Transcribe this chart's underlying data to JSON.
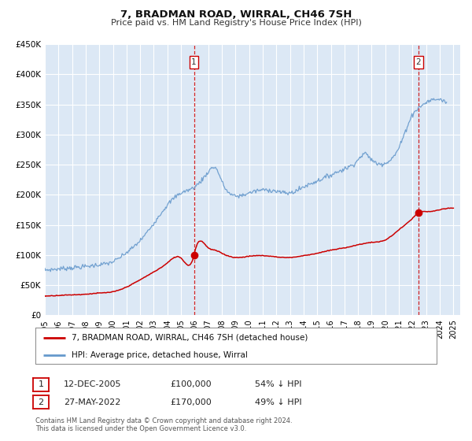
{
  "title": "7, BRADMAN ROAD, WIRRAL, CH46 7SH",
  "subtitle": "Price paid vs. HM Land Registry's House Price Index (HPI)",
  "ylim": [
    0,
    450000
  ],
  "xlim_start": 1995.0,
  "xlim_end": 2025.5,
  "bg_color": "#dce8f5",
  "grid_color": "#ffffff",
  "red_line_color": "#cc0000",
  "blue_line_color": "#6699cc",
  "ann1_x": 2005.95,
  "ann1_y": 100000,
  "ann2_x": 2022.42,
  "ann2_y": 170000,
  "ann1_date": "12-DEC-2005",
  "ann1_price": "£100,000",
  "ann1_pct": "54% ↓ HPI",
  "ann2_date": "27-MAY-2022",
  "ann2_price": "£170,000",
  "ann2_pct": "49% ↓ HPI",
  "legend_line1": "7, BRADMAN ROAD, WIRRAL, CH46 7SH (detached house)",
  "legend_line2": "HPI: Average price, detached house, Wirral",
  "footer1": "Contains HM Land Registry data © Crown copyright and database right 2024.",
  "footer2": "This data is licensed under the Open Government Licence v3.0.",
  "yticks": [
    0,
    50000,
    100000,
    150000,
    200000,
    250000,
    300000,
    350000,
    400000,
    450000
  ],
  "ytick_labels": [
    "£0",
    "£50K",
    "£100K",
    "£150K",
    "£200K",
    "£250K",
    "£300K",
    "£350K",
    "£400K",
    "£450K"
  ],
  "xticks": [
    1995,
    1996,
    1997,
    1998,
    1999,
    2000,
    2001,
    2002,
    2003,
    2004,
    2005,
    2006,
    2007,
    2008,
    2009,
    2010,
    2011,
    2012,
    2013,
    2014,
    2015,
    2016,
    2017,
    2018,
    2019,
    2020,
    2021,
    2022,
    2023,
    2024,
    2025
  ],
  "hpi_key_years": [
    1995,
    1996,
    1997,
    1998,
    1999,
    2000,
    2001,
    2002,
    2003,
    2004,
    2005,
    2006,
    2007,
    2007.6,
    2008,
    2009,
    2010,
    2011,
    2012,
    2013,
    2014,
    2015,
    2016,
    2017,
    2018,
    2018.5,
    2019,
    2020,
    2021,
    2022,
    2022.5,
    2023,
    2024,
    2024.5
  ],
  "hpi_key_vals": [
    75000,
    77000,
    79000,
    81000,
    84000,
    89000,
    104000,
    124000,
    153000,
    183000,
    203000,
    213000,
    238000,
    243000,
    222000,
    198000,
    203000,
    208000,
    206000,
    203000,
    213000,
    223000,
    233000,
    243000,
    258000,
    268000,
    258000,
    253000,
    278000,
    333000,
    345000,
    353000,
    358000,
    353000
  ],
  "red_key_years": [
    1995,
    1996,
    1997,
    1998,
    1999,
    2000,
    2001,
    2002,
    2003,
    2004,
    2005,
    2005.95,
    2006,
    2007,
    2007.5,
    2008,
    2009,
    2010,
    2011,
    2012,
    2013,
    2014,
    2015,
    2016,
    2017,
    2018,
    2019,
    2020,
    2021,
    2022,
    2022.42,
    2023,
    2024,
    2025
  ],
  "red_key_vals": [
    32000,
    33000,
    34000,
    35000,
    37000,
    39000,
    47000,
    59000,
    72000,
    87000,
    95000,
    100000,
    105000,
    112000,
    108000,
    103000,
    96000,
    98000,
    99000,
    97000,
    96000,
    99000,
    103000,
    108000,
    112000,
    117000,
    121000,
    125000,
    142000,
    161000,
    170000,
    172000,
    175000,
    178000
  ]
}
